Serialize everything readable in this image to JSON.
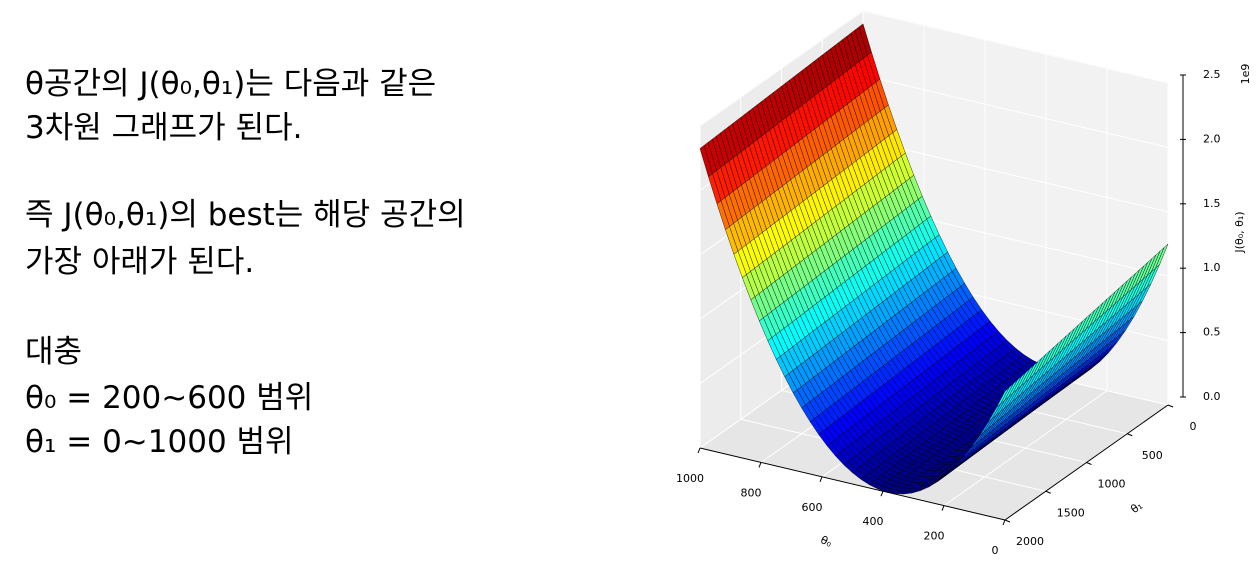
{
  "text": {
    "lines": [
      "θ공간의 J(θ₀,θ₁)는 다음과 같은",
      "3차원 그래프가 된다.",
      "즉 J(θ₀,θ₁)의 best는 해당 공간의",
      "가장 아래가 된다.",
      "대충",
      "θ₀ = 200~600 범위",
      "θ₁ = 0~1000 범위"
    ]
  },
  "chart_data": {
    "type": "surface3d",
    "xlabel": "θ₀",
    "ylabel": "θ₁",
    "zlabel": "J(θ₀, θ₁)",
    "z_offset_label": "1e9",
    "xlim": [
      0,
      1000
    ],
    "xticks": [
      0,
      200,
      400,
      600,
      800,
      1000
    ],
    "ylim": [
      0,
      2000
    ],
    "yticks": [
      0,
      500,
      1000,
      1500,
      2000
    ],
    "zlim": [
      0,
      2.5
    ],
    "zticks": [
      {
        "value": 0,
        "label": "0.0"
      },
      {
        "value": 0.5,
        "label": "0.5"
      },
      {
        "value": 1,
        "label": "1.0"
      },
      {
        "value": 1.5,
        "label": "1.5"
      },
      {
        "value": 2,
        "label": "2.0"
      },
      {
        "value": 2.5,
        "label": "2.5"
      }
    ],
    "grid": true,
    "colormap": "jet"
  }
}
